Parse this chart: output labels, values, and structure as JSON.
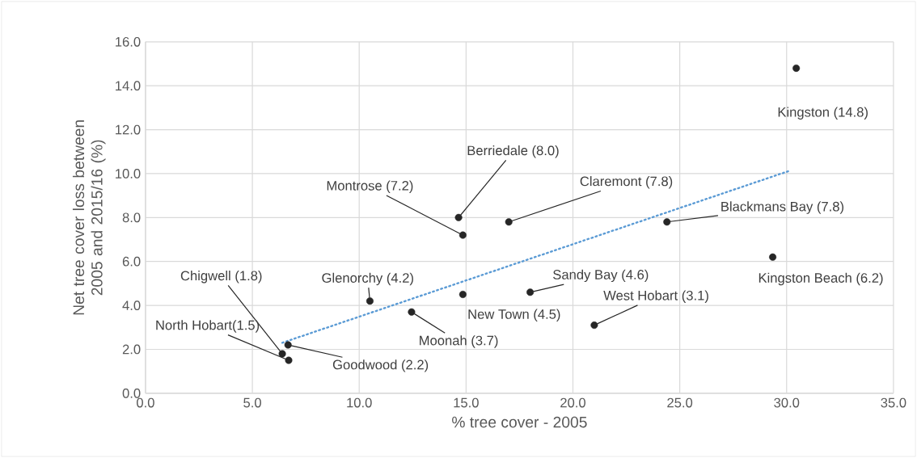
{
  "chart_data": {
    "type": "scatter",
    "xlabel": "% tree cover - 2005",
    "ylabel": "Net tree cover loss between 2005 and 2015/16 (%)",
    "xlim": [
      0,
      35
    ],
    "ylim": [
      0,
      16
    ],
    "xticks": [
      {
        "value": 0,
        "label": "0.0"
      },
      {
        "value": 5,
        "label": "5.0"
      },
      {
        "value": 10,
        "label": "10.0"
      },
      {
        "value": 15,
        "label": "15.0"
      },
      {
        "value": 20,
        "label": "20.0"
      },
      {
        "value": 25,
        "label": "25.0"
      },
      {
        "value": 30,
        "label": "30.0"
      },
      {
        "value": 35,
        "label": "35.0"
      }
    ],
    "yticks": [
      {
        "value": 0,
        "label": "0.0"
      },
      {
        "value": 2,
        "label": "2.0"
      },
      {
        "value": 4,
        "label": "4.0"
      },
      {
        "value": 6,
        "label": "6.0"
      },
      {
        "value": 8,
        "label": "8.0"
      },
      {
        "value": 10,
        "label": "10.0"
      },
      {
        "value": 12,
        "label": "12.0"
      },
      {
        "value": 14,
        "label": "14.0"
      },
      {
        "value": 16,
        "label": "16.0"
      }
    ],
    "grid": true,
    "series": [
      {
        "color": "#262626",
        "marker": "circle",
        "x": [
          30.45,
          29.35,
          24.4,
          17.0,
          14.65,
          14.85,
          18.0,
          21.0,
          14.85,
          12.45,
          10.5,
          6.4,
          6.7,
          6.67
        ],
        "values": [
          14.8,
          6.2,
          7.8,
          7.8,
          8.0,
          7.2,
          4.6,
          3.1,
          4.5,
          3.7,
          4.2,
          1.8,
          1.5,
          2.2
        ]
      },
      {
        "type": "line",
        "color": "#5b9bd5",
        "line_style": "dotted",
        "marker": "none",
        "x": [
          6.4,
          30.2
        ],
        "values": [
          2.3,
          10.15
        ]
      }
    ],
    "annotations": [
      {
        "text": "Kingston (14.8)",
        "x": 30.45,
        "y": 14.8
      },
      {
        "text": "Kingston Beach (6.2)",
        "x": 29.35,
        "y": 6.2
      },
      {
        "text": "Blackmans Bay (7.8)",
        "x": 24.4,
        "y": 7.8
      },
      {
        "text": "Claremont (7.8)",
        "x": 17.0,
        "y": 7.8
      },
      {
        "text": "Berriedale (8.0)",
        "x": 14.65,
        "y": 8.0
      },
      {
        "text": "Montrose (7.2)",
        "x": 14.85,
        "y": 7.2
      },
      {
        "text": "Sandy Bay (4.6)",
        "x": 18.0,
        "y": 4.6
      },
      {
        "text": "West Hobart (3.1)",
        "x": 21.0,
        "y": 3.1
      },
      {
        "text": "New Town (4.5)",
        "x": 14.85,
        "y": 4.5
      },
      {
        "text": "Moonah (3.7)",
        "x": 12.45,
        "y": 3.7
      },
      {
        "text": "Glenorchy (4.2)",
        "x": 10.5,
        "y": 4.2
      },
      {
        "text": "Chigwell (1.8)",
        "x": 6.4,
        "y": 1.8
      },
      {
        "text": "North Hobart(1.5)",
        "x": 6.7,
        "y": 1.5
      },
      {
        "text": "Goodwood (2.2)",
        "x": 6.67,
        "y": 2.2
      }
    ]
  }
}
